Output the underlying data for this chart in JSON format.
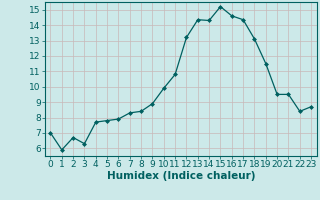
{
  "x": [
    0,
    1,
    2,
    3,
    4,
    5,
    6,
    7,
    8,
    9,
    10,
    11,
    12,
    13,
    14,
    15,
    16,
    17,
    18,
    19,
    20,
    21,
    22,
    23
  ],
  "y": [
    7.0,
    5.9,
    6.7,
    6.3,
    7.7,
    7.8,
    7.9,
    8.3,
    8.4,
    8.9,
    9.9,
    10.8,
    13.2,
    14.35,
    14.3,
    15.2,
    14.6,
    14.35,
    13.1,
    11.5,
    9.5,
    9.5,
    8.4,
    8.7
  ],
  "line_color": "#006060",
  "marker": "D",
  "marker_size": 2,
  "bg_color": "#cce9e9",
  "grid_color": "#c8b8b8",
  "xlabel": "Humidex (Indice chaleur)",
  "xlim": [
    -0.5,
    23.5
  ],
  "ylim": [
    5.5,
    15.5
  ],
  "yticks": [
    6,
    7,
    8,
    9,
    10,
    11,
    12,
    13,
    14,
    15
  ],
  "xticks": [
    0,
    1,
    2,
    3,
    4,
    5,
    6,
    7,
    8,
    9,
    10,
    11,
    12,
    13,
    14,
    15,
    16,
    17,
    18,
    19,
    20,
    21,
    22,
    23
  ],
  "font_size": 6.5,
  "xlabel_fontsize": 7.5
}
